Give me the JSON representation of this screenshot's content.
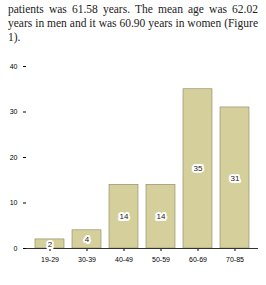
{
  "text": "patients was 61.58 years. The mean age was 62.02 years in men and it was 60.90 years in women (Figure 1).",
  "chart_data": {
    "type": "bar",
    "categories": [
      "19-29",
      "30-39",
      "40-49",
      "50-59",
      "60-69",
      "70-85"
    ],
    "values": [
      2,
      4,
      14,
      14,
      35,
      31
    ],
    "color": "#d5cf9b",
    "ylim": [
      0,
      40
    ],
    "yticks": [
      0,
      10,
      20,
      30,
      40
    ],
    "data_labels": true,
    "grid": false
  }
}
